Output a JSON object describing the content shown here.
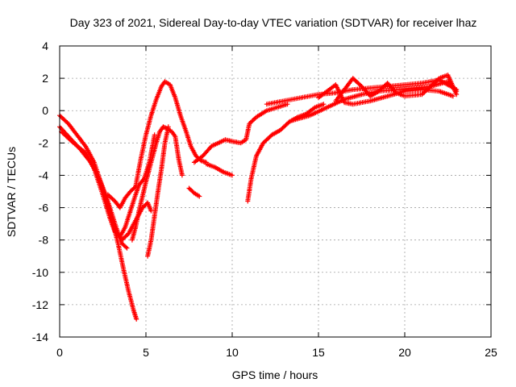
{
  "chart_data": {
    "type": "scatter",
    "title": "Day 323 of 2021, Sidereal Day-to-day VTEC variation (SDTVAR) for receiver lhaz",
    "xlabel": "GPS time / hours",
    "ylabel": "SDTVAR / TECUs",
    "xlim": [
      0,
      25
    ],
    "ylim": [
      -14,
      4
    ],
    "xticks": [
      "0",
      "5",
      "10",
      "15",
      "20",
      "25"
    ],
    "yticks": [
      "4",
      "2",
      "0",
      "-2",
      "-4",
      "-6",
      "-8",
      "-10",
      "-12",
      "-14"
    ],
    "grid": true,
    "marker": "+",
    "series": [
      {
        "name": "SDTVAR",
        "color": "#ff0000",
        "tracks": [
          [
            [
              0,
              -0.3
            ],
            [
              0.5,
              -0.8
            ],
            [
              1,
              -1.5
            ],
            [
              1.5,
              -2.2
            ],
            [
              2,
              -3.2
            ],
            [
              2.4,
              -4.5
            ],
            [
              2.8,
              -5.8
            ],
            [
              3.1,
              -7.0
            ],
            [
              3.4,
              -8.3
            ],
            [
              3.7,
              -9.8
            ],
            [
              4.0,
              -11.2
            ],
            [
              4.3,
              -12.4
            ],
            [
              4.45,
              -12.9
            ]
          ],
          [
            [
              0,
              -1.0
            ],
            [
              0.6,
              -1.7
            ],
            [
              1.2,
              -2.4
            ],
            [
              1.8,
              -3.2
            ],
            [
              2.3,
              -4.2
            ],
            [
              2.7,
              -5.3
            ],
            [
              3.0,
              -6.3
            ],
            [
              3.3,
              -7.3
            ],
            [
              3.6,
              -8.2
            ],
            [
              3.9,
              -8.5
            ]
          ],
          [
            [
              0.1,
              -1.3
            ],
            [
              0.8,
              -2.0
            ],
            [
              1.5,
              -2.6
            ],
            [
              2.0,
              -3.6
            ],
            [
              2.5,
              -5.2
            ],
            [
              2.9,
              -6.6
            ],
            [
              3.2,
              -7.5
            ],
            [
              3.5,
              -7.8
            ],
            [
              3.8,
              -7.2
            ],
            [
              4.1,
              -6.2
            ],
            [
              4.4,
              -5.2
            ],
            [
              4.6,
              -4.6
            ],
            [
              4.9,
              -4.2
            ],
            [
              5.2,
              -3.2
            ],
            [
              5.5,
              -1.5
            ]
          ],
          [
            [
              2.8,
              -5.2
            ],
            [
              3.2,
              -5.6
            ],
            [
              3.5,
              -6.0
            ],
            [
              3.8,
              -5.4
            ],
            [
              4.1,
              -5.0
            ],
            [
              4.4,
              -4.7
            ],
            [
              4.7,
              -3.0
            ],
            [
              5.0,
              -1.5
            ],
            [
              5.3,
              -0.3
            ],
            [
              5.6,
              0.7
            ],
            [
              5.9,
              1.5
            ],
            [
              6.1,
              1.8
            ],
            [
              6.4,
              1.6
            ],
            [
              6.7,
              0.8
            ],
            [
              7.0,
              -0.3
            ],
            [
              7.3,
              -1.2
            ],
            [
              7.6,
              -2.2
            ],
            [
              7.9,
              -2.8
            ],
            [
              8.2,
              -3.1
            ],
            [
              8.5,
              -3.2
            ]
          ],
          [
            [
              4.2,
              -8.0
            ],
            [
              4.4,
              -7.2
            ],
            [
              4.6,
              -6.2
            ],
            [
              4.8,
              -5.3
            ],
            [
              5.0,
              -4.4
            ],
            [
              5.3,
              -3.2
            ],
            [
              5.6,
              -2.0
            ],
            [
              5.8,
              -1.3
            ],
            [
              6.0,
              -1.0
            ],
            [
              6.2,
              -1.1
            ],
            [
              6.5,
              -1.3
            ],
            [
              6.7,
              -1.6
            ],
            [
              6.9,
              -3.0
            ],
            [
              7.1,
              -4.0
            ]
          ],
          [
            [
              3.6,
              -8.0
            ],
            [
              4.0,
              -7.6
            ],
            [
              4.4,
              -6.8
            ],
            [
              4.8,
              -6.0
            ],
            [
              5.1,
              -5.7
            ],
            [
              5.3,
              -6.2
            ]
          ],
          [
            [
              5.1,
              -9.0
            ],
            [
              5.3,
              -8.0
            ],
            [
              5.5,
              -6.5
            ],
            [
              5.7,
              -5.0
            ],
            [
              5.9,
              -3.6
            ],
            [
              6.1,
              -2.0
            ],
            [
              6.3,
              -1.0
            ]
          ],
          [
            [
              7.5,
              -4.8
            ],
            [
              7.8,
              -5.1
            ],
            [
              8.1,
              -5.3
            ]
          ],
          [
            [
              7.8,
              -3.2
            ],
            [
              8.3,
              -2.8
            ],
            [
              8.8,
              -2.2
            ],
            [
              9.2,
              -2.0
            ],
            [
              9.6,
              -1.8
            ],
            [
              10.0,
              -1.9
            ],
            [
              10.5,
              -2.0
            ],
            [
              10.8,
              -1.8
            ],
            [
              11.0,
              -0.8
            ],
            [
              11.4,
              -0.4
            ],
            [
              12.0,
              0.0
            ],
            [
              12.6,
              0.2
            ],
            [
              13.2,
              0.4
            ]
          ],
          [
            [
              8.5,
              -3.3
            ],
            [
              9.0,
              -3.5
            ],
            [
              9.5,
              -3.8
            ],
            [
              10.0,
              -4.0
            ]
          ],
          [
            [
              10.9,
              -5.6
            ],
            [
              11.1,
              -4.2
            ],
            [
              11.4,
              -2.8
            ],
            [
              11.8,
              -2.0
            ],
            [
              12.3,
              -1.5
            ],
            [
              12.8,
              -1.2
            ],
            [
              13.3,
              -0.7
            ],
            [
              13.8,
              -0.4
            ],
            [
              14.3,
              -0.2
            ],
            [
              14.8,
              0.2
            ],
            [
              15.3,
              0.4
            ]
          ],
          [
            [
              12.0,
              0.4
            ],
            [
              13.0,
              0.6
            ],
            [
              14.0,
              0.8
            ],
            [
              15.0,
              1.0
            ],
            [
              16.0,
              1.1
            ],
            [
              17.0,
              1.3
            ],
            [
              18.0,
              1.4
            ],
            [
              19.0,
              1.5
            ],
            [
              20.0,
              1.6
            ],
            [
              21.0,
              1.7
            ],
            [
              22.0,
              1.9
            ],
            [
              23.0,
              1.3
            ]
          ],
          [
            [
              13.5,
              -0.6
            ],
            [
              14.5,
              -0.3
            ],
            [
              15.5,
              0.2
            ],
            [
              16.5,
              0.7
            ],
            [
              17.5,
              1.0
            ],
            [
              18.5,
              1.2
            ],
            [
              19.5,
              1.3
            ],
            [
              20.5,
              1.4
            ],
            [
              21.5,
              1.5
            ],
            [
              22.5,
              1.8
            ],
            [
              23.0,
              1.2
            ]
          ],
          [
            [
              16.0,
              0.6
            ],
            [
              16.5,
              1.3
            ],
            [
              17.0,
              2.0
            ],
            [
              17.5,
              1.5
            ],
            [
              18.0,
              0.9
            ],
            [
              18.5,
              1.2
            ],
            [
              19.0,
              1.7
            ],
            [
              19.5,
              1.1
            ],
            [
              20.0,
              0.9
            ],
            [
              21.0,
              1.0
            ],
            [
              22.0,
              2.0
            ],
            [
              22.5,
              2.2
            ],
            [
              23.0,
              1.0
            ]
          ],
          [
            [
              15.0,
              0.8
            ],
            [
              16.0,
              1.6
            ],
            [
              16.5,
              0.5
            ],
            [
              17.0,
              0.4
            ],
            [
              18.0,
              0.6
            ],
            [
              19.0,
              0.9
            ],
            [
              20.0,
              1.2
            ],
            [
              21.0,
              1.3
            ],
            [
              22.0,
              1.2
            ],
            [
              22.8,
              0.9
            ]
          ]
        ]
      }
    ]
  }
}
